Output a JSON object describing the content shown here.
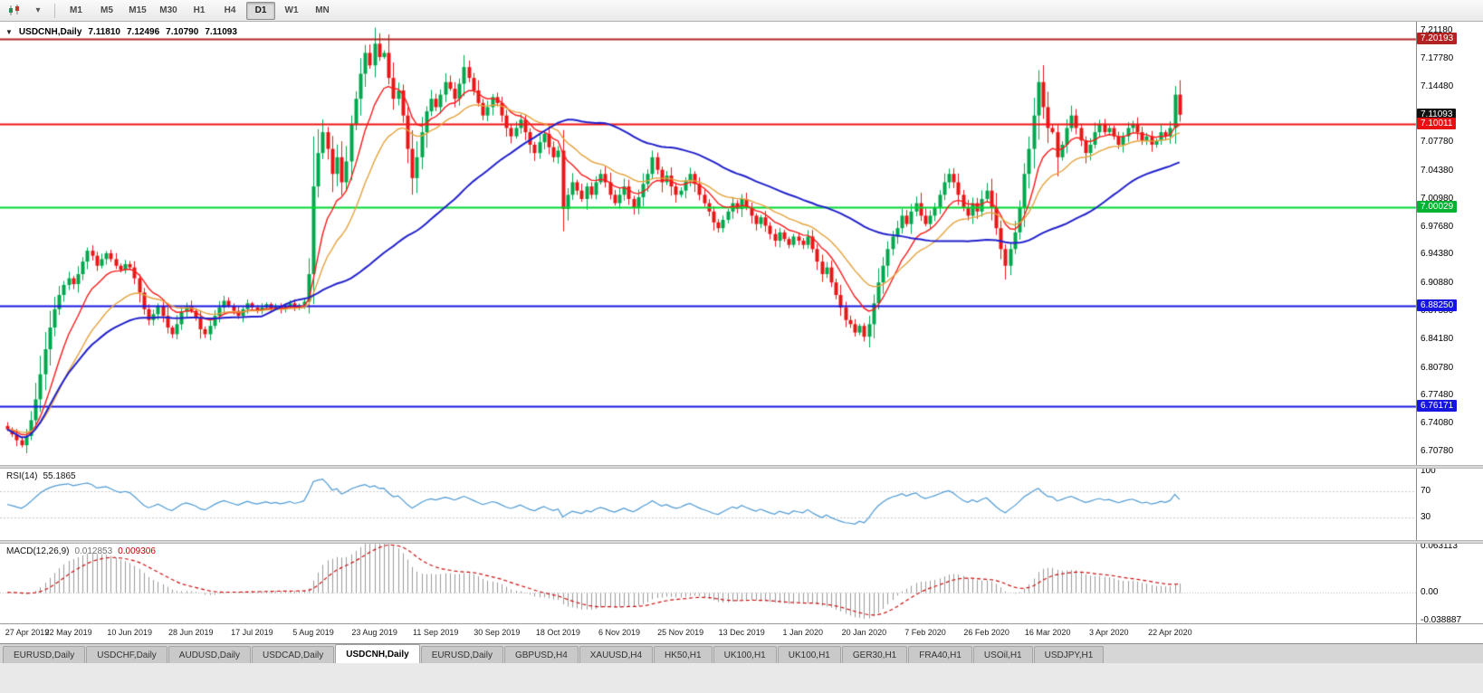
{
  "toolbar": {
    "icons": [
      "chart-candles-icon",
      "timeframe-dropdown-caret-icon"
    ],
    "timeframes": [
      "M1",
      "M5",
      "M15",
      "M30",
      "H1",
      "H4",
      "D1",
      "W1",
      "MN"
    ],
    "active_timeframe": "D1"
  },
  "chart_window": {
    "title": {
      "collapse_glyph": "▼",
      "symbol": "USDCNH,Daily",
      "open": "7.11810",
      "high": "7.12496",
      "low": "7.10790",
      "close": "7.11093"
    },
    "price_axis": {
      "ticks": [
        "7.21180",
        "7.17780",
        "7.14480",
        "7.07780",
        "7.04380",
        "7.00980",
        "6.97680",
        "6.94380",
        "6.90880",
        "6.87580",
        "6.84180",
        "6.80780",
        "6.77480",
        "6.74080",
        "6.70780"
      ],
      "badges": [
        {
          "value": "7.20193",
          "price": 7.20193,
          "color": "#b22222"
        },
        {
          "value": "7.11093",
          "price": 7.11093,
          "color": "#101010"
        },
        {
          "value": "7.10011",
          "price": 7.10011,
          "color": "#e81010"
        },
        {
          "value": "7.00029",
          "price": 7.00029,
          "color": "#00b232"
        },
        {
          "value": "6.88250",
          "price": 6.8825,
          "color": "#1616e0"
        },
        {
          "value": "6.76171",
          "price": 6.76171,
          "color": "#1616e0"
        }
      ]
    },
    "hlines": [
      {
        "price": 7.20193,
        "color": "#b22222",
        "width": 2
      },
      {
        "price": 7.10011,
        "color": "#f01414",
        "width": 2
      },
      {
        "price": 7.00029,
        "color": "#00d832",
        "width": 2
      },
      {
        "price": 6.8825,
        "color": "#1616e0",
        "width": 2
      },
      {
        "price": 6.76171,
        "color": "#1616e0",
        "width": 2
      }
    ],
    "rsi_panel": {
      "label": "RSI(14)",
      "value": "55.1865",
      "axis_labels": [
        "100",
        "70",
        "30"
      ],
      "levels": [
        70,
        30
      ],
      "line_color": "#4f9bd5",
      "level_color": "#c8c8c8"
    },
    "macd_panel": {
      "label": "MACD(12,26,9)",
      "main_value": "0.012853",
      "signal_value": "0.009306",
      "axis_labels": [
        "0.063113",
        "0.00",
        "-0.038887"
      ],
      "hist_color": "#9a9a9a",
      "signal_color": "#cc1111"
    }
  },
  "tabs": {
    "items": [
      {
        "label": "EURUSD,Daily",
        "active": false
      },
      {
        "label": "USDCHF,Daily",
        "active": false
      },
      {
        "label": "AUDUSD,Daily",
        "active": false
      },
      {
        "label": "USDCAD,Daily",
        "active": false
      },
      {
        "label": "USDCNH,Daily",
        "active": true
      },
      {
        "label": "EURUSD,Daily",
        "active": false
      },
      {
        "label": "GBPUSD,H4",
        "active": false
      },
      {
        "label": "XAUUSD,H4",
        "active": false
      },
      {
        "label": "HK50,H1",
        "active": false
      },
      {
        "label": "UK100,H1",
        "active": false
      },
      {
        "label": "UK100,H1",
        "active": false
      },
      {
        "label": "GER30,H1",
        "active": false
      },
      {
        "label": "FRA40,H1",
        "active": false
      },
      {
        "label": "USOil,H1",
        "active": false
      },
      {
        "label": "USDJPY,H1",
        "active": false
      }
    ]
  },
  "chart_data": {
    "type": "candlestick",
    "symbol": "USDCNH",
    "timeframe": "Daily",
    "ylim": [
      6.7,
      7.218
    ],
    "x_labels": [
      "27 Apr 2019",
      "22 May 2019",
      "10 Jun 2019",
      "28 Jun 2019",
      "17 Jul 2019",
      "5 Aug 2019",
      "23 Aug 2019",
      "11 Sep 2019",
      "30 Sep 2019",
      "18 Oct 2019",
      "6 Nov 2019",
      "25 Nov 2019",
      "13 Dec 2019",
      "1 Jan 2020",
      "20 Jan 2020",
      "7 Feb 2020",
      "26 Feb 2020",
      "16 Mar 2020",
      "3 Apr 2020",
      "22 Apr 2020"
    ],
    "bars_per_label": 13,
    "up_color": "#00a84e",
    "down_color": "#e81717",
    "ma": [
      {
        "type": "ema",
        "period": 10,
        "color": "#ff1a1a"
      },
      {
        "type": "ema",
        "period": 21,
        "color": "#e6a23c"
      },
      {
        "type": "sma",
        "period": 55,
        "color": "#2222cc"
      }
    ],
    "rsi_period": 14,
    "macd_params": [
      12,
      26,
      9
    ],
    "macd_ylim": [
      -0.038887,
      0.063113
    ],
    "closes": [
      6.734,
      6.728,
      6.721,
      6.715,
      6.726,
      6.745,
      6.77,
      6.8,
      6.83,
      6.856,
      6.878,
      6.895,
      6.907,
      6.915,
      6.908,
      6.92,
      6.935,
      6.948,
      6.942,
      6.93,
      6.938,
      6.945,
      6.938,
      6.93,
      6.925,
      6.932,
      6.928,
      6.915,
      6.898,
      6.878,
      6.865,
      6.872,
      6.882,
      6.87,
      6.856,
      6.848,
      6.86,
      6.875,
      6.882,
      6.876,
      6.868,
      6.854,
      6.848,
      6.858,
      6.87,
      6.88,
      6.888,
      6.882,
      6.876,
      6.87,
      6.878,
      6.885,
      6.88,
      6.876,
      6.88,
      6.884,
      6.879,
      6.882,
      6.878,
      6.881,
      6.885,
      6.88,
      6.883,
      6.887,
      6.92,
      7.025,
      7.065,
      7.09,
      7.07,
      7.04,
      7.06,
      7.03,
      7.055,
      7.1,
      7.13,
      7.16,
      7.185,
      7.17,
      7.196,
      7.18,
      7.185,
      7.155,
      7.13,
      7.14,
      7.11,
      7.07,
      7.035,
      7.06,
      7.09,
      7.115,
      7.13,
      7.12,
      7.135,
      7.15,
      7.142,
      7.13,
      7.148,
      7.168,
      7.155,
      7.14,
      7.125,
      7.11,
      7.12,
      7.132,
      7.125,
      7.11,
      7.095,
      7.085,
      7.095,
      7.105,
      7.09,
      7.075,
      7.065,
      7.078,
      7.088,
      7.072,
      7.06,
      7.068,
      6.998,
      7.015,
      7.03,
      7.02,
      7.01,
      7.025,
      7.015,
      7.03,
      7.04,
      7.03,
      7.015,
      7.005,
      7.015,
      7.025,
      7.01,
      7.0,
      7.012,
      7.028,
      7.04,
      7.06,
      7.045,
      7.03,
      7.038,
      7.025,
      7.015,
      7.02,
      7.032,
      7.04,
      7.028,
      7.015,
      7.005,
      6.995,
      6.982,
      6.975,
      6.985,
      6.995,
      7.005,
      6.998,
      7.01,
      7.0,
      6.99,
      6.98,
      6.988,
      6.978,
      6.968,
      6.96,
      6.97,
      6.962,
      6.955,
      6.965,
      6.96,
      6.955,
      6.965,
      6.95,
      6.935,
      6.92,
      6.928,
      6.91,
      6.895,
      6.88,
      6.865,
      6.86,
      6.85,
      6.858,
      6.845,
      6.86,
      6.885,
      6.91,
      6.93,
      6.95,
      6.965,
      6.975,
      6.99,
      6.98,
      6.995,
      7.005,
      6.99,
      6.98,
      6.99,
      7.0,
      7.015,
      7.03,
      7.04,
      7.03,
      7.015,
      7.0,
      6.99,
      7.005,
      6.995,
      7.01,
      7.02,
      7.0,
      6.975,
      6.95,
      6.93,
      6.95,
      6.97,
      7.0,
      7.04,
      7.07,
      7.11,
      7.15,
      7.12,
      7.095,
      7.09,
      7.06,
      7.075,
      7.095,
      7.11,
      7.095,
      7.08,
      7.065,
      7.075,
      7.09,
      7.1,
      7.09,
      7.095,
      7.085,
      7.075,
      7.085,
      7.095,
      7.1,
      7.09,
      7.08,
      7.085,
      7.075,
      7.08,
      7.09,
      7.085,
      7.095,
      7.135,
      7.1109
    ]
  }
}
